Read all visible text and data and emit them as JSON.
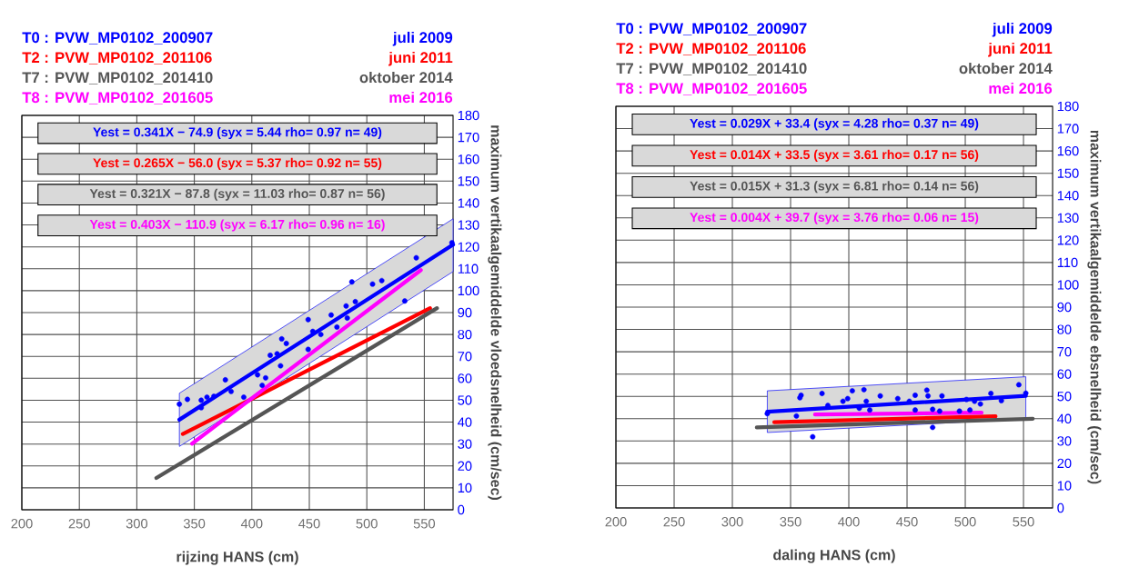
{
  "chart_data": [
    {
      "type": "scatter",
      "xlabel": "rijzing HANS (cm)",
      "ylabel": "maximum vertikaalgemiddelde vloedsnelheid (cm/sec)",
      "xlim": [
        200,
        575
      ],
      "ylim": [
        0,
        180
      ],
      "xticks": [
        200,
        250,
        300,
        350,
        400,
        450,
        500,
        550
      ],
      "yticks": [
        0,
        10,
        20,
        30,
        40,
        50,
        60,
        70,
        80,
        90,
        100,
        110,
        120,
        130,
        140,
        150,
        160,
        170,
        180
      ],
      "grid": true,
      "legend": "top",
      "annotations": [
        "juli 2009",
        "juni 2011",
        "oktober 2014",
        "mei 2016",
        "Yest = 0.341X − 74.9 (syx = 5.44 rho= 0.97 n= 49)",
        "Yest = 0.265X − 56.0 (syx = 5.37 rho= 0.92 n= 55)",
        "Yest = 0.321X − 87.8 (syx = 11.03 rho= 0.87 n= 56)",
        "Yest = 0.403X − 110.9 (syx = 6.17 rho= 0.96 n= 16)"
      ],
      "series": [
        {
          "type": "scatter",
          "marker": "circle",
          "color": "#0000ff",
          "x": [
            337,
            344,
            356,
            361,
            367,
            356,
            377,
            382,
            393,
            405,
            412,
            409,
            416,
            422,
            425,
            426,
            430,
            449,
            449,
            453,
            460,
            469,
            474,
            482,
            483,
            487,
            490,
            505,
            513,
            533,
            543,
            574
          ],
          "values": [
            48.2,
            50.4,
            50,
            51.4,
            51.8,
            46.6,
            59.3,
            54,
            51.4,
            61.6,
            60.2,
            56.8,
            70.5,
            71.2,
            65.7,
            78,
            75.9,
            86.8,
            73.2,
            81.4,
            80,
            88.9,
            83.4,
            93,
            87.5,
            104,
            95,
            103,
            104.6,
            95.3,
            115,
            121.9
          ]
        },
        {
          "type": "line",
          "name": "T0 : PVW_MP0102_200907",
          "color": "#0000ff",
          "x": [
            337,
            575
          ],
          "values": [
            41.1,
            121
          ],
          "lower": [
            28.9,
            108.7
          ],
          "upper": [
            53.2,
            132.8
          ]
        },
        {
          "type": "line",
          "name": "T2 : PVW_MP0102_201106",
          "color": "#ff0000",
          "x": [
            340,
            555
          ],
          "values": [
            34.6,
            92
          ]
        },
        {
          "type": "line",
          "name": "T7 : PVW_MP0102_201410",
          "color": "#555555",
          "x": [
            317,
            561
          ],
          "values": [
            14.5,
            92
          ]
        },
        {
          "type": "line",
          "name": "T8 : PVW_MP0102_201605",
          "color": "#ff00ff",
          "x": [
            348,
            547
          ],
          "values": [
            30.2,
            109.4
          ]
        }
      ]
    },
    {
      "type": "scatter",
      "xlabel": "daling HANS (cm)",
      "ylabel": "maximum vertikaalgemiddelde ebsnelheid (cm/sec)",
      "xlim": [
        200,
        575
      ],
      "ylim": [
        0,
        180
      ],
      "xticks": [
        200,
        250,
        300,
        350,
        400,
        450,
        500,
        550
      ],
      "yticks": [
        0,
        10,
        20,
        30,
        40,
        50,
        60,
        70,
        80,
        90,
        100,
        110,
        120,
        130,
        140,
        150,
        160,
        170,
        180
      ],
      "grid": true,
      "legend": "top",
      "annotations": [
        "juli 2009",
        "juni 2011",
        "oktober 2014",
        "mei 2016",
        "Yest = 0.029X + 33.4 (syx = 4.28 rho= 0.37 n= 49)",
        "Yest = 0.014X + 33.5 (syx = 3.61 rho= 0.17 n= 56)",
        "Yest = 0.015X + 31.3 (syx = 6.81 rho= 0.14 n= 56)",
        "Yest = 0.004X + 39.7 (syx = 3.76 rho= 0.06 n= 15)"
      ],
      "series": [
        {
          "type": "scatter",
          "marker": "circle",
          "color": "#0000ff",
          "x": [
            330,
            355,
            358,
            359,
            369,
            377,
            382,
            395,
            399,
            403,
            409,
            413,
            415,
            418,
            427,
            442,
            452,
            457,
            457,
            467,
            468,
            472,
            472,
            478,
            480,
            495,
            501,
            504,
            508,
            513,
            522,
            531,
            546,
            552
          ],
          "values": [
            42.3,
            41.2,
            49.4,
            50.5,
            31.9,
            51.3,
            45.9,
            47.8,
            49,
            52.5,
            44.7,
            53,
            47.8,
            43.9,
            50.2,
            49,
            47.8,
            43.9,
            50.5,
            52.8,
            50.2,
            36.1,
            44.2,
            43.4,
            50.2,
            43.4,
            48.6,
            43.9,
            47.8,
            46.6,
            51.3,
            48.1,
            55.2,
            51.4
          ]
        },
        {
          "type": "line",
          "name": "T0 : PVW_MP0102_200907",
          "color": "#0000ff",
          "x": [
            330,
            552
          ],
          "values": [
            43.1,
            50.2
          ],
          "lower": [
            33.8,
            40
          ],
          "upper": [
            52.5,
            58.8
          ]
        },
        {
          "type": "line",
          "name": "T2 : PVW_MP0102_201106",
          "color": "#ff0000",
          "x": [
            336,
            526
          ],
          "values": [
            38.4,
            41.1
          ]
        },
        {
          "type": "line",
          "name": "T7 : PVW_MP0102_201410",
          "color": "#555555",
          "x": [
            321,
            558
          ],
          "values": [
            36.1,
            40
          ]
        },
        {
          "type": "line",
          "name": "T8 : PVW_MP0102_201605",
          "color": "#ff00ff",
          "x": [
            371,
            514
          ],
          "values": [
            41.9,
            42.7
          ]
        }
      ]
    }
  ]
}
